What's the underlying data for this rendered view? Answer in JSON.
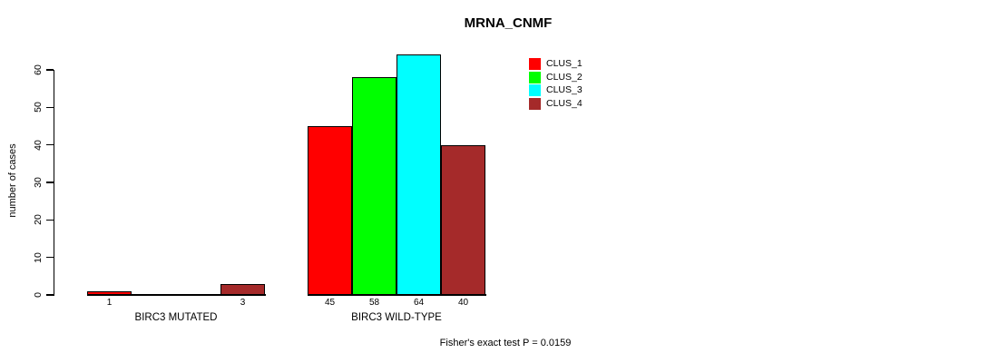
{
  "chart_data": {
    "type": "bar",
    "title": "MRNA_CNMF",
    "ylabel": "number of cases",
    "ylim": [
      0,
      60
    ],
    "yticks": [
      0,
      10,
      20,
      30,
      40,
      50,
      60
    ],
    "grid": false,
    "legend_position": "right",
    "series": [
      {
        "name": "CLUS_1",
        "color": "#ff0000"
      },
      {
        "name": "CLUS_2",
        "color": "#00ff00"
      },
      {
        "name": "CLUS_3",
        "color": "#00ffff"
      },
      {
        "name": "CLUS_4",
        "color": "#a52a2a"
      }
    ],
    "groups": [
      {
        "label": "BIRC3 MUTATED",
        "values": [
          1,
          0,
          0,
          3
        ],
        "bar_labels": [
          "1",
          "",
          "",
          "3"
        ]
      },
      {
        "label": "BIRC3 WILD-TYPE",
        "values": [
          45,
          58,
          64,
          40
        ],
        "bar_labels": [
          "45",
          "58",
          "64",
          "40"
        ]
      }
    ],
    "annotation": "Fisher's exact test P = 0.0159"
  }
}
